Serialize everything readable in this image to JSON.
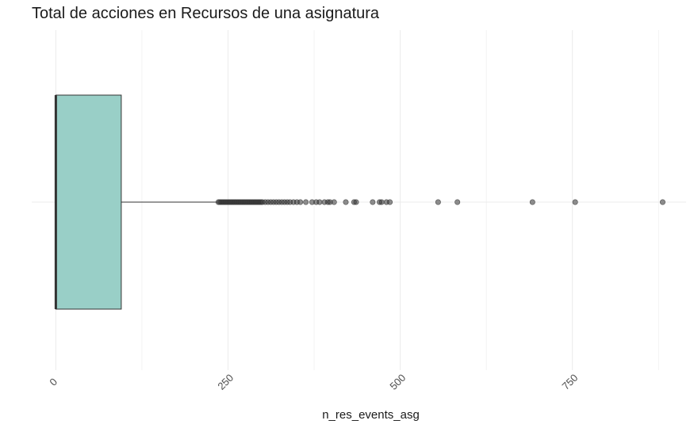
{
  "chart_data": {
    "type": "boxplot",
    "title": "Total de acciones en Recursos de una asignatura",
    "xlabel": "n_res_events_asg",
    "ylabel": "",
    "xlim": [
      -35,
      915
    ],
    "xticks": [
      0,
      250,
      500,
      750
    ],
    "xtick_labels": [
      "0",
      "250",
      "500",
      "750"
    ],
    "x_minor_gridlines": [
      125,
      375,
      625,
      875
    ],
    "grid": true,
    "orientation": "horizontal",
    "box": {
      "min": 0,
      "q1": 0,
      "median": 0,
      "q3": 95,
      "whisker_high": 235
    },
    "outliers": [
      236,
      238,
      240,
      242,
      244,
      246,
      248,
      250,
      252,
      254,
      256,
      258,
      260,
      262,
      264,
      266,
      268,
      270,
      272,
      274,
      276,
      278,
      280,
      282,
      284,
      286,
      288,
      290,
      292,
      294,
      296,
      298,
      300,
      304,
      308,
      312,
      316,
      320,
      324,
      328,
      332,
      336,
      340,
      345,
      350,
      355,
      363,
      372,
      378,
      383,
      390,
      395,
      398,
      404,
      421,
      433,
      436,
      460,
      470,
      473,
      480,
      485,
      555,
      583,
      692,
      754,
      881
    ],
    "colors": {
      "box_fill": "#99cfc7",
      "box_stroke": "#333333",
      "outlier": "#333333",
      "grid": "#ebebeb"
    }
  }
}
